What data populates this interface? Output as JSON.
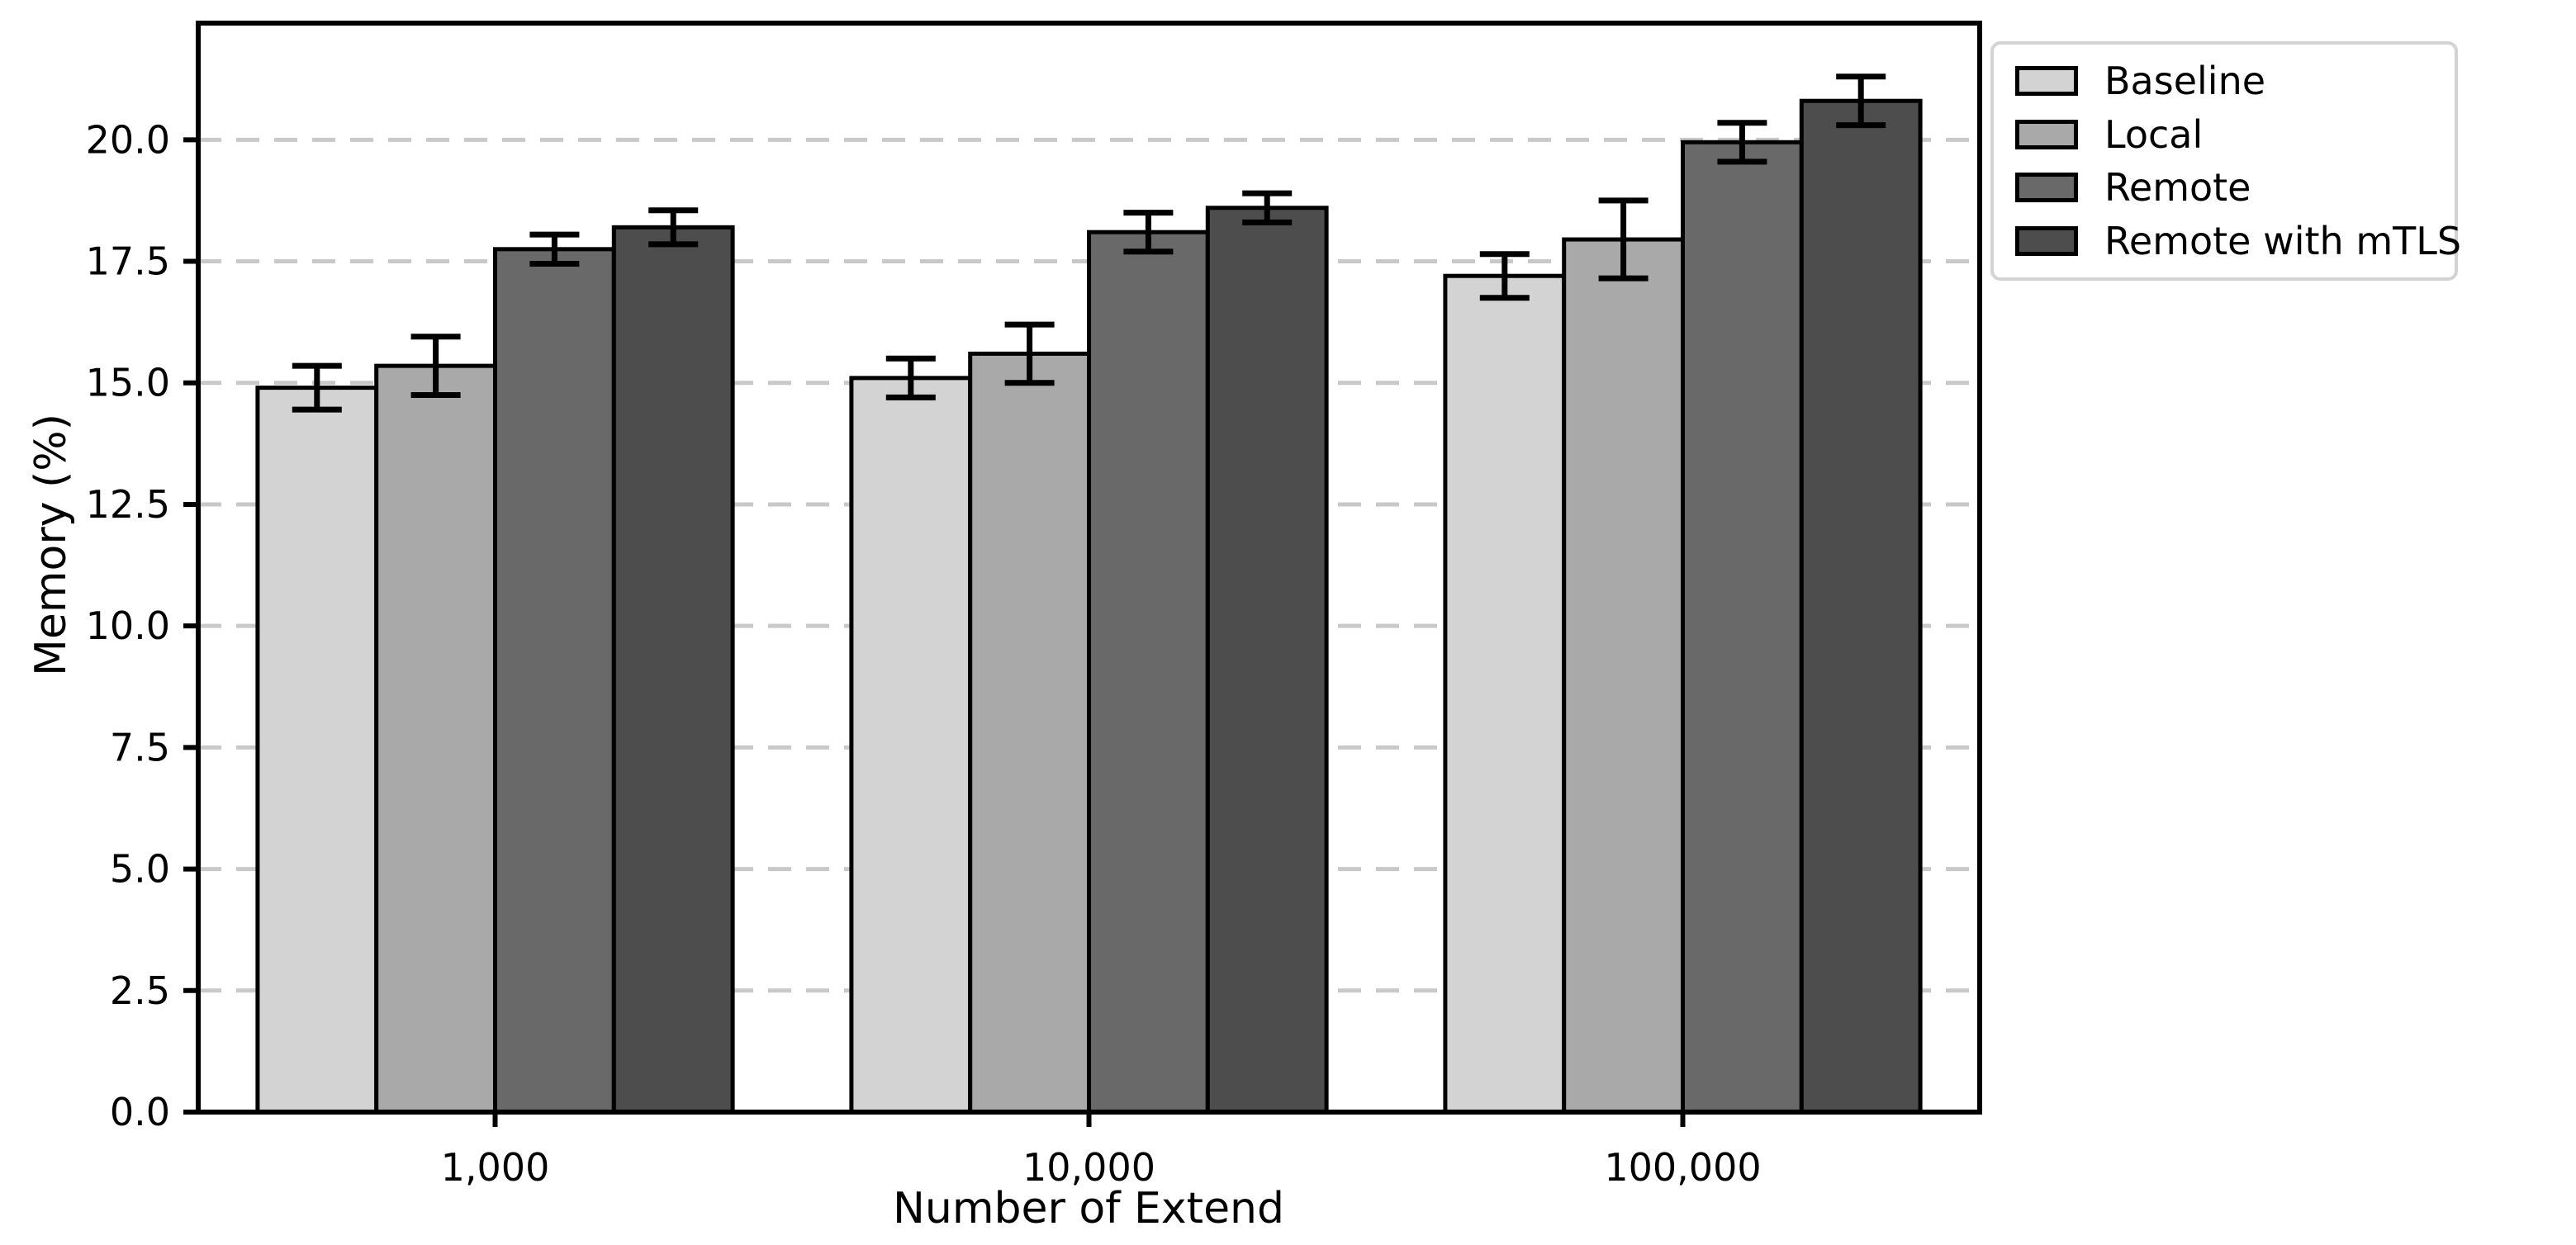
{
  "figure": {
    "background": "#ffffff"
  },
  "chart_data": {
    "type": "bar",
    "title": "",
    "xlabel": "Number of Extend",
    "ylabel": "Memory (%)",
    "categories": [
      "1,000",
      "10,000",
      "100,000"
    ],
    "series": [
      {
        "name": "Baseline",
        "color": "#d3d3d3",
        "values": [
          14.9,
          15.1,
          17.2
        ],
        "errors": [
          0.45,
          0.4,
          0.45
        ]
      },
      {
        "name": "Local",
        "color": "#a9a9a9",
        "values": [
          15.35,
          15.6,
          17.95
        ],
        "errors": [
          0.6,
          0.6,
          0.8
        ]
      },
      {
        "name": "Remote",
        "color": "#696969",
        "values": [
          17.75,
          18.1,
          19.95
        ],
        "errors": [
          0.3,
          0.4,
          0.4
        ]
      },
      {
        "name": "Remote with mTLS",
        "color": "#4d4d4d",
        "values": [
          18.2,
          18.6,
          20.8
        ],
        "errors": [
          0.35,
          0.3,
          0.5
        ]
      }
    ],
    "ylim": [
      0,
      22.4
    ],
    "yticks": [
      "0.0",
      "2.5",
      "5.0",
      "7.5",
      "10.0",
      "12.5",
      "15.0",
      "17.5",
      "20.0"
    ],
    "grid": "horizontal-dashed",
    "legend_position": "outside-top-right",
    "styles": {
      "bar_edge": "#000000",
      "error_color": "#000000",
      "grid_color": "#c9c9c9",
      "axis_color": "#000000",
      "text_color": "#000000",
      "legend_border": "#d3d3d3"
    }
  }
}
